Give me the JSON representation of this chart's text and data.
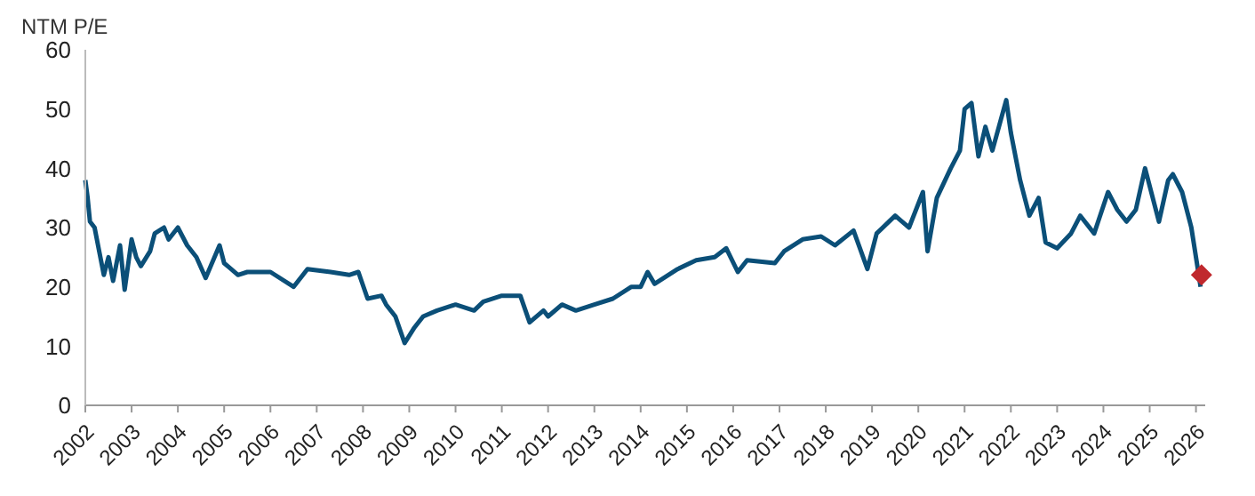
{
  "chart_data": {
    "type": "line",
    "title": "NTM P/E",
    "xlim": [
      2002,
      2026.2
    ],
    "xticks": [
      2002,
      2003,
      2004,
      2005,
      2006,
      2007,
      2008,
      2009,
      2010,
      2011,
      2012,
      2013,
      2014,
      2015,
      2016,
      2017,
      2018,
      2019,
      2020,
      2021,
      2022,
      2023,
      2024,
      2025,
      2026
    ],
    "ylim": [
      0,
      60
    ],
    "yticks": [
      0,
      10,
      20,
      30,
      40,
      50,
      60
    ],
    "grid": false,
    "series": [
      {
        "type": "line",
        "color": "#0b4f78",
        "marker": "none",
        "x": [
          2002.0,
          2002.05,
          2002.1,
          2002.2,
          2002.3,
          2002.4,
          2002.5,
          2002.6,
          2002.75,
          2002.85,
          2003.0,
          2003.1,
          2003.2,
          2003.4,
          2003.5,
          2003.7,
          2003.8,
          2004.0,
          2004.2,
          2004.4,
          2004.6,
          2004.9,
          2005.0,
          2005.3,
          2005.5,
          2006.0,
          2006.5,
          2006.8,
          2007.3,
          2007.7,
          2007.9,
          2008.1,
          2008.4,
          2008.5,
          2008.7,
          2008.9,
          2009.1,
          2009.3,
          2009.6,
          2010.0,
          2010.4,
          2010.6,
          2011.0,
          2011.4,
          2011.6,
          2011.9,
          2012.0,
          2012.3,
          2012.6,
          2013.0,
          2013.4,
          2013.8,
          2014.0,
          2014.15,
          2014.3,
          2014.8,
          2015.2,
          2015.6,
          2015.85,
          2016.1,
          2016.3,
          2016.9,
          2017.1,
          2017.5,
          2017.9,
          2018.2,
          2018.6,
          2018.9,
          2019.1,
          2019.5,
          2019.8,
          2020.1,
          2020.2,
          2020.4,
          2020.7,
          2020.9,
          2021.0,
          2021.15,
          2021.3,
          2021.45,
          2021.6,
          2021.9,
          2022.0,
          2022.2,
          2022.4,
          2022.6,
          2022.75,
          2023.0,
          2023.3,
          2023.5,
          2023.8,
          2024.1,
          2024.3,
          2024.5,
          2024.7,
          2024.9,
          2025.2,
          2025.4,
          2025.5,
          2025.7,
          2025.9,
          2026.1
        ],
        "values": [
          38,
          35,
          31,
          30,
          26,
          22,
          25,
          21,
          27,
          19.5,
          28,
          25,
          23.5,
          26,
          29,
          30,
          28,
          30,
          27,
          25,
          21.5,
          27,
          24,
          22,
          22.5,
          22.5,
          20,
          23,
          22.5,
          22,
          22.5,
          18,
          18.5,
          17,
          15,
          10.5,
          13,
          15,
          16,
          17,
          16,
          17.5,
          18.5,
          18.5,
          14,
          16,
          15,
          17,
          16,
          17,
          18,
          20,
          20,
          22.5,
          20.5,
          23,
          24.5,
          25,
          26.5,
          22.5,
          24.5,
          24,
          26,
          28,
          28.5,
          27,
          29.5,
          23,
          29,
          32,
          30,
          36,
          26,
          35,
          40,
          43,
          50,
          51,
          42,
          47,
          43,
          51.5,
          46,
          38,
          32,
          35,
          27.5,
          26.5,
          29,
          32,
          29,
          36,
          33,
          31,
          33,
          40,
          31,
          38,
          39,
          36,
          30,
          20
        ]
      },
      {
        "type": "scatter",
        "color": "#c0282d",
        "marker": "diamond",
        "x": [
          2026.12
        ],
        "values": [
          22
        ]
      }
    ]
  }
}
